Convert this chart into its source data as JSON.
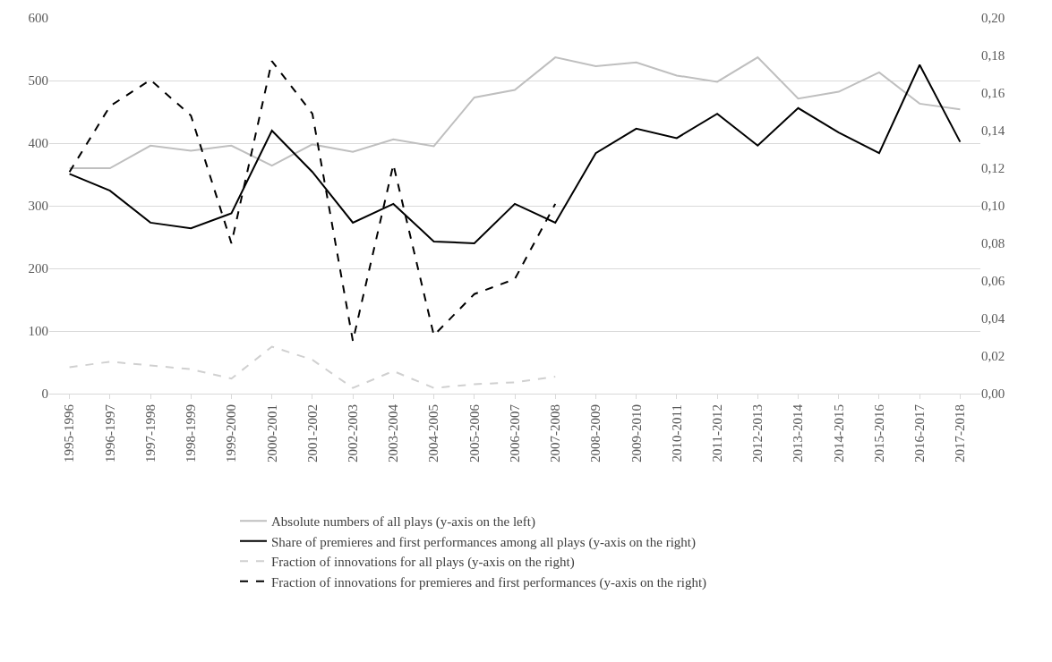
{
  "chart_data": {
    "type": "line",
    "categories": [
      "1995-1996",
      "1996-1997",
      "1997-1998",
      "1998-1999",
      "1999-2000",
      "2000-2001",
      "2001-2002",
      "2002-2003",
      "2003-2004",
      "2004-2005",
      "2005-2006",
      "2006-2007",
      "2007-2008",
      "2008-2009",
      "2009-2010",
      "2010-2011",
      "2011-2012",
      "2012-2013",
      "2013-2014",
      "2014-2015",
      "2015-2016",
      "2016-2017",
      "2017-2018"
    ],
    "series": [
      {
        "name": "Absolute numbers of all plays (y-axis on the left)",
        "color": "#bfbfbf",
        "line_style": "solid",
        "values": [
          360,
          360,
          396,
          388,
          396,
          364,
          398,
          386,
          406,
          395,
          473,
          485,
          537,
          523,
          529,
          508,
          498,
          537,
          471,
          482,
          513,
          463,
          454
        ]
      },
      {
        "name": "Share of premieres and first performances among all plays (y-axis on the right)",
        "color": "#000000",
        "line_style": "solid",
        "axis": "y2",
        "values": [
          0.117,
          0.108,
          0.091,
          0.088,
          0.096,
          0.14,
          0.118,
          0.091,
          0.101,
          0.081,
          0.08,
          0.101,
          0.091,
          0.128,
          0.141,
          0.136,
          0.149,
          0.132,
          0.152,
          0.139,
          0.128,
          0.175,
          0.134
        ]
      },
      {
        "name": "Fraction of innovations for all plays (y-axis on the right)",
        "color": "#d0d0d0",
        "line_style": "dashed",
        "axis": "y2",
        "values": [
          0.014,
          0.017,
          0.015,
          0.013,
          0.008,
          0.025,
          0.018,
          0.003,
          0.012,
          0.003,
          0.005,
          0.006,
          0.009,
          null,
          null,
          null,
          null,
          null,
          null,
          null,
          null,
          null,
          null
        ]
      },
      {
        "name": "Fraction of innovations for premieres and first performances (y-axis on the right)",
        "color": "#000000",
        "line_style": "dashed",
        "axis": "y2",
        "values": [
          0.118,
          0.153,
          0.167,
          0.148,
          0.08,
          0.177,
          0.149,
          0.028,
          0.122,
          0.031,
          0.053,
          0.061,
          0.101,
          null,
          null,
          null,
          null,
          null,
          null,
          null,
          null,
          null,
          null
        ]
      }
    ],
    "ylim": [
      0,
      600
    ],
    "yticks": [
      0,
      100,
      200,
      300,
      400,
      500,
      600
    ],
    "y2lim": [
      0,
      0.2
    ],
    "y2ticks": [
      {
        "value": 0,
        "label": "0,00"
      },
      {
        "value": 0.02,
        "label": "0,02"
      },
      {
        "value": 0.04,
        "label": "0,04"
      },
      {
        "value": 0.06,
        "label": "0,06"
      },
      {
        "value": 0.08,
        "label": "0,08"
      },
      {
        "value": 0.1,
        "label": "0,10"
      },
      {
        "value": 0.12,
        "label": "0,12"
      },
      {
        "value": 0.14,
        "label": "0,14"
      },
      {
        "value": 0.16,
        "label": "0,16"
      },
      {
        "value": 0.18,
        "label": "0,18"
      },
      {
        "value": 0.2,
        "label": "0,20"
      }
    ],
    "grid": "y",
    "legend": "bottom",
    "marker": "none"
  }
}
